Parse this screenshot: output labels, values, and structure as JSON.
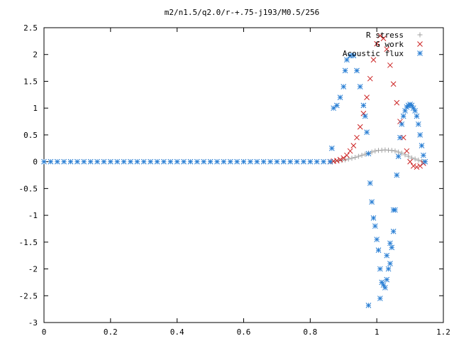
{
  "chart_data": {
    "type": "scatter",
    "title": "m2/n1.5/q2.0/r-+.75-j193/M0.5/256",
    "xlabel": "",
    "ylabel": "",
    "xlim": [
      0,
      1.2
    ],
    "ylim": [
      -3,
      2.5
    ],
    "xticks": [
      0,
      0.2,
      0.4,
      0.6,
      0.8,
      1,
      1.2
    ],
    "yticks": [
      -3,
      -2.5,
      -2,
      -1.5,
      -1,
      -0.5,
      0,
      0.5,
      1,
      1.5,
      2,
      2.5
    ],
    "grid": false,
    "legend_position": "top-right",
    "series": [
      {
        "name": "R stress",
        "marker": "plus",
        "color": "#a0a0a0",
        "points": [
          [
            0.865,
            0.0
          ],
          [
            0.875,
            0.01
          ],
          [
            0.885,
            0.015
          ],
          [
            0.895,
            0.025
          ],
          [
            0.905,
            0.035
          ],
          [
            0.915,
            0.05
          ],
          [
            0.925,
            0.065
          ],
          [
            0.935,
            0.08
          ],
          [
            0.945,
            0.1
          ],
          [
            0.955,
            0.12
          ],
          [
            0.965,
            0.14
          ],
          [
            0.975,
            0.16
          ],
          [
            0.985,
            0.18
          ],
          [
            0.995,
            0.2
          ],
          [
            1.005,
            0.21
          ],
          [
            1.015,
            0.215
          ],
          [
            1.025,
            0.22
          ],
          [
            1.035,
            0.215
          ],
          [
            1.045,
            0.21
          ],
          [
            1.055,
            0.2
          ],
          [
            1.065,
            0.18
          ],
          [
            1.075,
            0.16
          ],
          [
            1.085,
            0.13
          ],
          [
            1.095,
            0.1
          ],
          [
            1.105,
            0.07
          ],
          [
            1.115,
            0.05
          ],
          [
            1.125,
            0.03
          ],
          [
            1.135,
            0.01
          ],
          [
            1.145,
            0.0
          ]
        ]
      },
      {
        "name": "G work",
        "marker": "x",
        "color": "#cc2222",
        "points": [
          [
            0.86,
            0.0
          ],
          [
            0.87,
            0.01
          ],
          [
            0.88,
            0.02
          ],
          [
            0.89,
            0.04
          ],
          [
            0.9,
            0.07
          ],
          [
            0.91,
            0.12
          ],
          [
            0.92,
            0.2
          ],
          [
            0.93,
            0.3
          ],
          [
            0.94,
            0.45
          ],
          [
            0.95,
            0.65
          ],
          [
            0.96,
            0.9
          ],
          [
            0.97,
            1.2
          ],
          [
            0.98,
            1.55
          ],
          [
            0.99,
            1.9
          ],
          [
            1.0,
            2.2
          ],
          [
            1.01,
            2.35
          ],
          [
            1.02,
            2.3
          ],
          [
            1.03,
            2.1
          ],
          [
            1.04,
            1.8
          ],
          [
            1.05,
            1.45
          ],
          [
            1.06,
            1.1
          ],
          [
            1.07,
            0.75
          ],
          [
            1.08,
            0.45
          ],
          [
            1.09,
            0.2
          ],
          [
            1.1,
            0.0
          ],
          [
            1.11,
            -0.08
          ],
          [
            1.12,
            -0.1
          ],
          [
            1.13,
            -0.08
          ],
          [
            1.14,
            -0.03
          ]
        ]
      },
      {
        "name": "Acoustic flux",
        "marker": "star",
        "color": "#2a7fd4",
        "points": [
          [
            0.0,
            0.0
          ],
          [
            0.02,
            0.0
          ],
          [
            0.04,
            0.0
          ],
          [
            0.06,
            0.0
          ],
          [
            0.08,
            0.0
          ],
          [
            0.1,
            0.0
          ],
          [
            0.12,
            0.0
          ],
          [
            0.14,
            0.0
          ],
          [
            0.16,
            0.0
          ],
          [
            0.18,
            0.0
          ],
          [
            0.2,
            0.0
          ],
          [
            0.22,
            0.0
          ],
          [
            0.24,
            0.0
          ],
          [
            0.26,
            0.0
          ],
          [
            0.28,
            0.0
          ],
          [
            0.3,
            0.0
          ],
          [
            0.32,
            0.0
          ],
          [
            0.34,
            0.0
          ],
          [
            0.36,
            0.0
          ],
          [
            0.38,
            0.0
          ],
          [
            0.4,
            0.0
          ],
          [
            0.42,
            0.0
          ],
          [
            0.44,
            0.0
          ],
          [
            0.46,
            0.0
          ],
          [
            0.48,
            0.0
          ],
          [
            0.5,
            0.0
          ],
          [
            0.52,
            0.0
          ],
          [
            0.54,
            0.0
          ],
          [
            0.56,
            0.0
          ],
          [
            0.58,
            0.0
          ],
          [
            0.6,
            0.0
          ],
          [
            0.62,
            0.0
          ],
          [
            0.64,
            0.0
          ],
          [
            0.66,
            0.0
          ],
          [
            0.68,
            0.0
          ],
          [
            0.7,
            0.0
          ],
          [
            0.72,
            0.0
          ],
          [
            0.74,
            0.0
          ],
          [
            0.76,
            0.0
          ],
          [
            0.78,
            0.0
          ],
          [
            0.8,
            0.0
          ],
          [
            0.82,
            0.0
          ],
          [
            0.84,
            0.0
          ],
          [
            0.86,
            0.0
          ],
          [
            0.865,
            0.25
          ],
          [
            0.87,
            1.0
          ],
          [
            0.88,
            1.05
          ],
          [
            0.89,
            1.2
          ],
          [
            0.9,
            1.4
          ],
          [
            0.905,
            1.7
          ],
          [
            0.91,
            1.9
          ],
          [
            0.92,
            1.98
          ],
          [
            0.93,
            1.98
          ],
          [
            0.94,
            1.7
          ],
          [
            0.95,
            1.4
          ],
          [
            0.96,
            1.05
          ],
          [
            0.965,
            0.85
          ],
          [
            0.97,
            0.55
          ],
          [
            0.975,
            0.15
          ],
          [
            0.98,
            -0.4
          ],
          [
            0.985,
            -0.75
          ],
          [
            0.99,
            -1.05
          ],
          [
            0.995,
            -1.2
          ],
          [
            1.0,
            -1.45
          ],
          [
            1.005,
            -1.65
          ],
          [
            1.01,
            -2.0
          ],
          [
            1.015,
            -2.25
          ],
          [
            1.02,
            -2.3
          ],
          [
            1.025,
            -2.35
          ],
          [
            1.03,
            -2.2
          ],
          [
            1.035,
            -2.0
          ],
          [
            1.04,
            -1.9
          ],
          [
            1.045,
            -1.6
          ],
          [
            1.05,
            -1.3
          ],
          [
            0.975,
            -2.68
          ],
          [
            1.01,
            -2.55
          ],
          [
            1.03,
            -1.75
          ],
          [
            1.04,
            -1.52
          ],
          [
            1.05,
            -0.9
          ],
          [
            1.055,
            -0.9
          ],
          [
            1.06,
            -0.25
          ],
          [
            1.065,
            0.1
          ],
          [
            1.07,
            0.45
          ],
          [
            1.075,
            0.7
          ],
          [
            1.08,
            0.85
          ],
          [
            1.085,
            0.95
          ],
          [
            1.09,
            1.02
          ],
          [
            1.095,
            1.05
          ],
          [
            1.1,
            1.07
          ],
          [
            1.105,
            1.05
          ],
          [
            1.11,
            1.0
          ],
          [
            1.115,
            0.95
          ],
          [
            1.12,
            0.85
          ],
          [
            1.125,
            0.7
          ],
          [
            1.13,
            0.5
          ],
          [
            1.135,
            0.3
          ],
          [
            1.14,
            0.12
          ],
          [
            1.145,
            0.0
          ]
        ]
      }
    ]
  }
}
